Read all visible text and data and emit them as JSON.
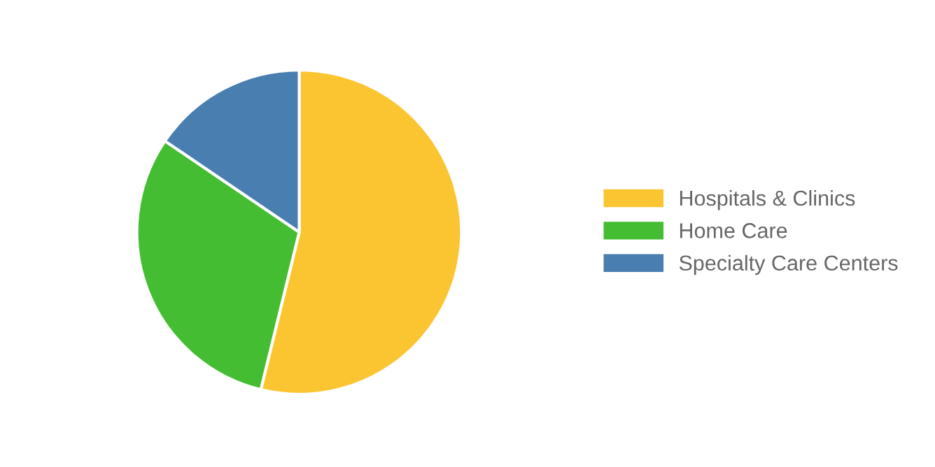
{
  "chart_data": {
    "type": "pie",
    "categories": [
      "Hospitals & Clinics",
      "Home Care",
      "Specialty Care Centers"
    ],
    "values": [
      53.8,
      30.7,
      15.5
    ],
    "colors": [
      "#fbc531",
      "#44bd32",
      "#487eb0"
    ],
    "legend": "right"
  }
}
